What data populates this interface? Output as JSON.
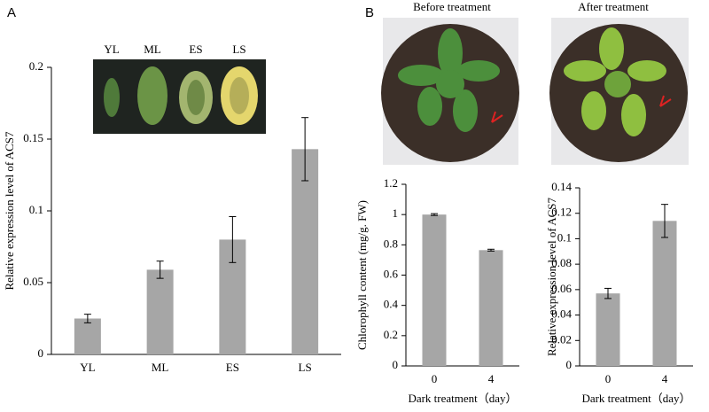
{
  "panel_labels": [
    "A",
    "B"
  ],
  "photo_titles": [
    "Before treatment",
    "After treatment"
  ],
  "chart_data": [
    {
      "type": "bar",
      "categories": [
        "YL",
        "ML",
        "ES",
        "LS"
      ],
      "values": [
        0.025,
        0.059,
        0.08,
        0.143
      ],
      "errors": [
        0.003,
        0.006,
        0.016,
        0.022
      ],
      "color": "#a6a6a6",
      "ylim": [
        0,
        0.2
      ],
      "yticks": [
        0,
        0.05,
        0.1,
        0.15,
        0.2
      ],
      "ylabel": "Relative expression level of ACS7",
      "inset_labels": [
        "YL",
        "ML",
        "ES",
        "LS"
      ]
    },
    {
      "type": "bar",
      "categories": [
        "0",
        "4"
      ],
      "values": [
        1.0,
        0.765
      ],
      "errors": [
        0.006,
        0.006
      ],
      "color": "#a6a6a6",
      "ylim": [
        0,
        1.2
      ],
      "yticks": [
        0,
        0.2,
        0.4,
        0.6,
        0.8,
        1,
        1.2
      ],
      "ylabel": "Chlorophyll content (mg/g. FW)",
      "xlabel": "Dark treatment（day）"
    },
    {
      "type": "bar",
      "categories": [
        "0",
        "4"
      ],
      "values": [
        0.057,
        0.114
      ],
      "errors": [
        0.004,
        0.013
      ],
      "color": "#a6a6a6",
      "ylim": [
        0,
        0.14
      ],
      "yticks": [
        0,
        0.02,
        0.04,
        0.06,
        0.08,
        0.1,
        0.12,
        0.14
      ],
      "ylabel": "Relative expression level of ACS7",
      "xlabel": "Dark treatment（day）"
    }
  ]
}
